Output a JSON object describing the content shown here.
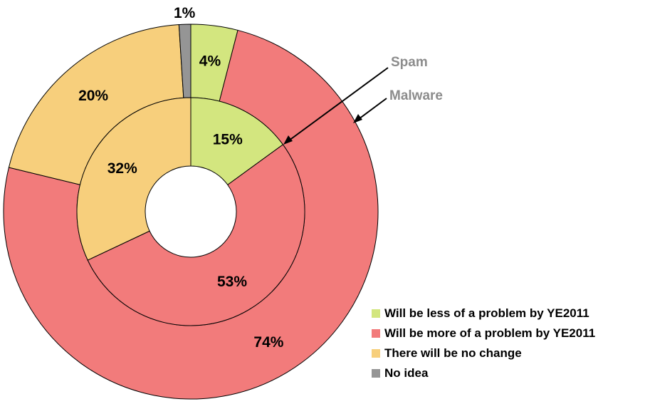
{
  "chart_data": {
    "type": "pie",
    "subtype": "nested-donut",
    "categories": [
      "Will be less of a problem by YE2011",
      "Will be more of a problem by YE2011",
      "There will be no change",
      "No idea"
    ],
    "colors": [
      "#d3e67f",
      "#f27b7b",
      "#f7cf7c",
      "#959595"
    ],
    "series": [
      {
        "name": "Spam",
        "ring": "inner",
        "values": [
          15,
          53,
          32,
          0
        ],
        "labels": [
          "15%",
          "53%",
          "32%",
          ""
        ]
      },
      {
        "name": "Malware",
        "ring": "outer",
        "values": [
          4,
          74,
          20,
          1
        ],
        "labels": [
          "4%",
          "74%",
          "20%",
          "1%"
        ]
      }
    ],
    "legend_position": "bottom-right"
  },
  "callouts": {
    "spam": "Spam",
    "malware": "Malware"
  }
}
